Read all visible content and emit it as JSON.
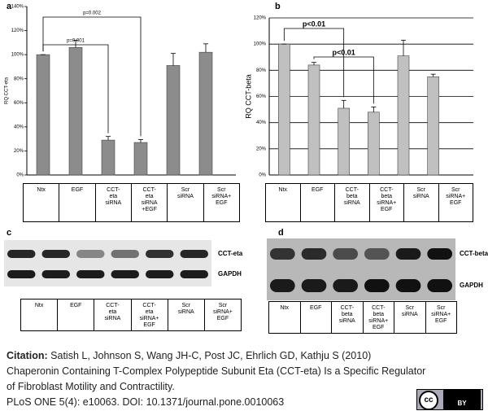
{
  "chart_data": [
    {
      "type": "bar",
      "panel": "a",
      "y_label": "RQ CCT-eta",
      "categories": [
        "Ntx",
        "EGF",
        "CCT-\neta\nsiRNA",
        "CCT-\neta\nsiRNA\n+EGF",
        "Scr\nsiRNA",
        "Scr\nsiRNA+\nEGF"
      ],
      "values": [
        100,
        106,
        29,
        27,
        91,
        102
      ],
      "errors": [
        0,
        6,
        3,
        2.5,
        10,
        7
      ],
      "color": "#8c8c8c",
      "ylim": [
        0,
        140
      ],
      "yticks": [
        {
          "value": 0,
          "label": "0%"
        },
        {
          "value": 20,
          "label": "20%"
        },
        {
          "value": 40,
          "label": "40%"
        },
        {
          "value": 60,
          "label": "60%"
        },
        {
          "value": 80,
          "label": "80%"
        },
        {
          "value": 100,
          "label": "100%"
        },
        {
          "value": 120,
          "label": "120%"
        },
        {
          "value": 140,
          "label": "140%"
        }
      ],
      "grid": false,
      "annotations": [
        "p=0.001",
        "p=0.002"
      ]
    },
    {
      "type": "bar",
      "panel": "b",
      "y_label": "RQ CCT-beta",
      "categories": [
        "Ntx",
        "EGF",
        "CCT-\nbeta\nsiRNA",
        "CCT-\nbeta\nsiRNA+\nEGF",
        "Scr\nsiRNA",
        "Scr\nsiRNA+\nEGF"
      ],
      "values": [
        100,
        84,
        51,
        48,
        91,
        75
      ],
      "errors": [
        0,
        2,
        6,
        4,
        12,
        2
      ],
      "color": "#c0c0c0",
      "ylim": [
        0,
        120
      ],
      "yticks": [
        {
          "value": 0,
          "label": "0%"
        },
        {
          "value": 20,
          "label": "20%"
        },
        {
          "value": 40,
          "label": "40%"
        },
        {
          "value": 60,
          "label": "60%"
        },
        {
          "value": 80,
          "label": "80%"
        },
        {
          "value": 100,
          "label": "100%"
        },
        {
          "value": 120,
          "label": "120%"
        }
      ],
      "grid": true,
      "annotations": [
        "p<0.01",
        "p<0.01"
      ]
    }
  ],
  "blots": [
    {
      "panel": "c",
      "bands": [
        "CCT-eta",
        "GAPDH"
      ],
      "lanes": [
        "Ntx",
        "EGF",
        "CCT-\neta\nsiRNA",
        "CCT-\neta\nsiRNA+\nEGF",
        "Scr\nsiRNA",
        "Scr\nsiRNA+\nEGF"
      ]
    },
    {
      "panel": "d",
      "bands": [
        "CCT-beta",
        "GAPDH"
      ],
      "lanes": [
        "Ntx",
        "EGF",
        "CCT-\nbeta\nsiRNA",
        "CCT-\nbeta\nsiRNA+\nEGF",
        "Scr\nsiRNA",
        "Scr\nsiRNA+\nEGF"
      ]
    }
  ],
  "citation": {
    "label": "Citation:",
    "lines": [
      " Satish L, Johnson S, Wang JH-C, Post JC, Ehrlich GD, Kathju S (2010)",
      "Chaperonin Containing T-Complex Polypeptide Subunit Eta (CCT-eta) Is a Specific Regulator",
      "of Fibroblast Motility and Contractility.",
      "PLoS ONE 5(4): e10063. DOI: 10.1371/journal.pone.0010063"
    ]
  },
  "license": {
    "symbol": "cc",
    "type": "BY"
  }
}
